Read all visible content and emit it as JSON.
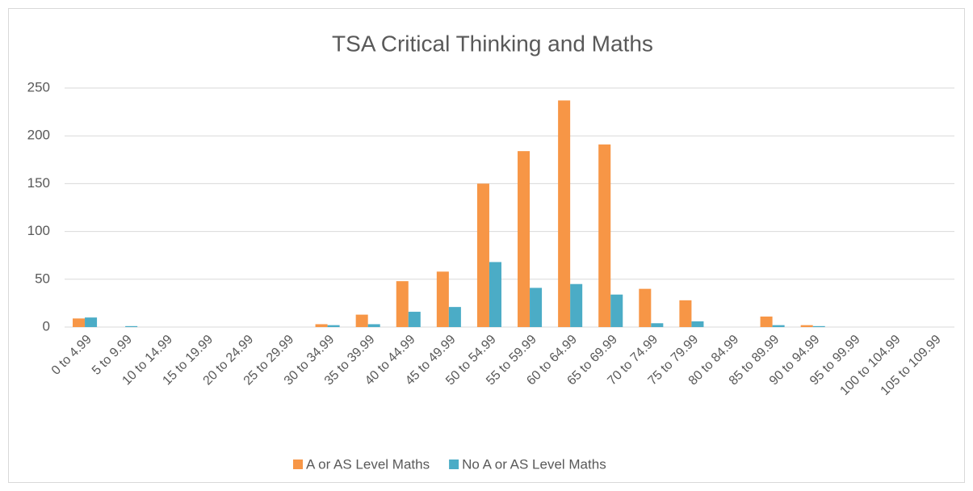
{
  "chart_data": {
    "type": "bar",
    "title": "TSA Critical Thinking and Maths",
    "categories": [
      "0 to 4.99",
      "5 to 9.99",
      "10 to 14.99",
      "15 to 19.99",
      "20 to 24.99",
      "25 to 29.99",
      "30 to 34.99",
      "35 to 39.99",
      "40 to 44.99",
      "45 to 49.99",
      "50 to 54.99",
      "55 to 59.99",
      "60 to 64.99",
      "65 to 69.99",
      "70 to 74.99",
      "75 to 79.99",
      "80 to 84.99",
      "85 to 89.99",
      "90 to 94.99",
      "95 to 99.99",
      "100 to 104.99",
      "105 to 109.99"
    ],
    "series": [
      {
        "name": "A or AS Level Maths",
        "color": "#f79646",
        "values": [
          9,
          0,
          0,
          0,
          0,
          0,
          3,
          13,
          48,
          58,
          150,
          184,
          237,
          191,
          40,
          28,
          0,
          11,
          2,
          0,
          0,
          0
        ]
      },
      {
        "name": "No A or AS Level Maths",
        "color": "#4bacc6",
        "values": [
          10,
          1,
          0,
          0,
          0,
          0,
          2,
          3,
          16,
          21,
          68,
          41,
          45,
          34,
          4,
          6,
          0,
          2,
          1,
          0,
          0,
          0
        ]
      }
    ],
    "ylim": [
      0,
      250
    ],
    "yticks": [
      0,
      50,
      100,
      150,
      200,
      250
    ],
    "grid": true,
    "legend": "bottom"
  }
}
